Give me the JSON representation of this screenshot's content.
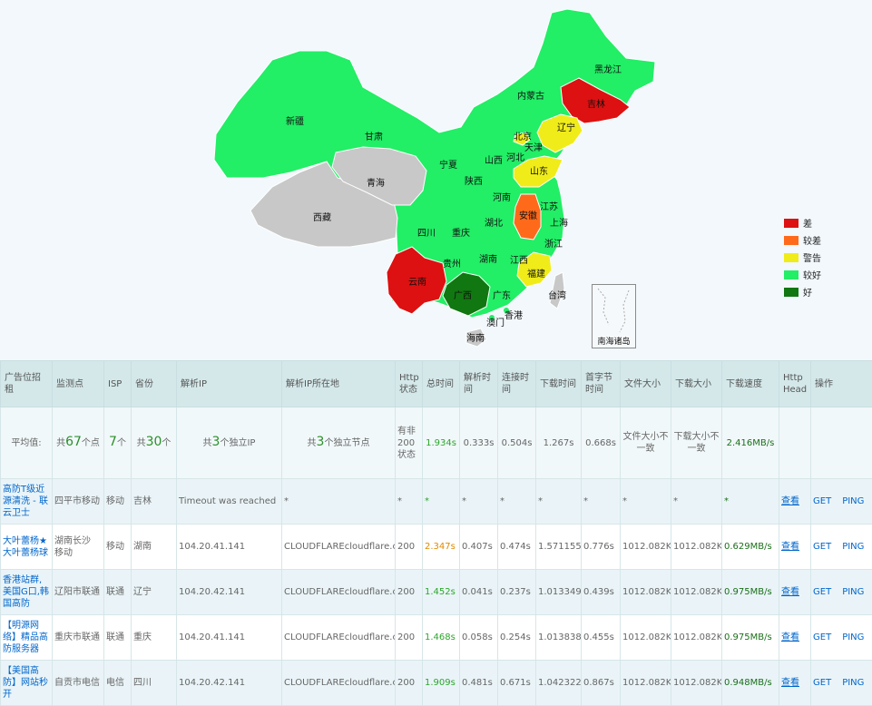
{
  "map": {
    "provinces": [
      {
        "name": "黑龙江",
        "status": "较好"
      },
      {
        "name": "吉林",
        "status": "差"
      },
      {
        "name": "内蒙古",
        "status": "较好"
      },
      {
        "name": "辽宁",
        "status": "警告"
      },
      {
        "name": "新疆",
        "status": "较好"
      },
      {
        "name": "甘肃",
        "status": "较好"
      },
      {
        "name": "北京",
        "status": "警告"
      },
      {
        "name": "天津",
        "status": "较好"
      },
      {
        "name": "宁夏",
        "status": "较好"
      },
      {
        "name": "山西",
        "status": "较好"
      },
      {
        "name": "河北",
        "status": "较好"
      },
      {
        "name": "山东",
        "status": "警告"
      },
      {
        "name": "青海",
        "status": "无数据"
      },
      {
        "name": "陕西",
        "status": "较好"
      },
      {
        "name": "河南",
        "status": "较好"
      },
      {
        "name": "江苏",
        "status": "较好"
      },
      {
        "name": "西藏",
        "status": "无数据"
      },
      {
        "name": "安徽",
        "status": "较差"
      },
      {
        "name": "上海",
        "status": "较好"
      },
      {
        "name": "四川",
        "status": "较好"
      },
      {
        "name": "重庆",
        "status": "较好"
      },
      {
        "name": "湖北",
        "status": "较好"
      },
      {
        "name": "浙江",
        "status": "较好"
      },
      {
        "name": "贵州",
        "status": "较好"
      },
      {
        "name": "湖南",
        "status": "较好"
      },
      {
        "name": "江西",
        "status": "较好"
      },
      {
        "name": "福建",
        "status": "警告"
      },
      {
        "name": "云南",
        "status": "差"
      },
      {
        "name": "广西",
        "status": "好"
      },
      {
        "name": "广东",
        "status": "较好"
      },
      {
        "name": "台湾",
        "status": "无数据"
      },
      {
        "name": "香港",
        "status": "较好"
      },
      {
        "name": "澳门",
        "status": "较好"
      },
      {
        "name": "海南",
        "status": "无数据"
      }
    ],
    "inset_label": "南海诸岛",
    "legend": [
      {
        "label": "差",
        "color": "#dd1111"
      },
      {
        "label": "较差",
        "color": "#ff6a1a"
      },
      {
        "label": "警告",
        "color": "#f0ec1a"
      },
      {
        "label": "较好",
        "color": "#22ee66"
      },
      {
        "label": "好",
        "color": "#117711"
      }
    ],
    "colors": {
      "no_data": "#c8c8c8",
      "border": "#ffffff"
    }
  },
  "table": {
    "headers": [
      "广告位招租",
      "监测点",
      "ISP",
      "省份",
      "解析IP",
      "解析IP所在地",
      "Http状态",
      "总时间",
      "解析时间",
      "连接时间",
      "下载时间",
      "首字节时间",
      "文件大小",
      "下载大小",
      "下载速度",
      "Http Head",
      "操作"
    ],
    "avg": {
      "label": "平均值:",
      "points_prefix": "共",
      "points_num": "67",
      "points_suffix": "个点",
      "isp_num": "7",
      "isp_suffix": "个",
      "prov_prefix": "共",
      "prov_num": "30",
      "prov_suffix": "个",
      "ip_prefix": "共",
      "ip_num": "3",
      "ip_suffix": "个独立IP",
      "node_prefix": "共",
      "node_num": "3",
      "node_suffix": "个独立节点",
      "http": "有非200状态",
      "total": "1.934s",
      "dns": "0.333s",
      "connect": "0.504s",
      "download": "1.267s",
      "ttfb": "0.668s",
      "filesize": "文件大小不一致",
      "dlsize": "下载大小不一致",
      "speed": "2.416MB/s"
    },
    "rows": [
      {
        "ad": "高防T级近源清洗 - 联云卫士",
        "point": "四平市移动",
        "isp": "移动",
        "prov": "吉林",
        "ip": "Timeout was reached",
        "loc": "*",
        "http": "*",
        "total": "*",
        "dns": "*",
        "connect": "*",
        "download": "*",
        "ttfb": "*",
        "filesize": "*",
        "dlsize": "*",
        "speed": "*",
        "head": "查看",
        "get": "GET",
        "ping": "PING",
        "total_color": "green"
      },
      {
        "ad": "大叶蕾杨★大叶蕾杨球",
        "point": "湖南长沙 移动",
        "isp": "移动",
        "prov": "湖南",
        "ip": "104.20.41.141",
        "loc": "CLOUDFLAREcloudflare.com",
        "http": "200",
        "total": "2.347s",
        "dns": "0.407s",
        "connect": "0.474s",
        "download": "1.571155s",
        "ttfb": "0.776s",
        "filesize": "1012.082KB",
        "dlsize": "1012.082KB",
        "speed": "0.629MB/s",
        "head": "查看",
        "get": "GET",
        "ping": "PING",
        "total_color": "orange"
      },
      {
        "ad": "香港站群,美国G口,韩国高防",
        "point": "辽阳市联通",
        "isp": "联通",
        "prov": "辽宁",
        "ip": "104.20.42.141",
        "loc": "CLOUDFLAREcloudflare.com",
        "http": "200",
        "total": "1.452s",
        "dns": "0.041s",
        "connect": "0.237s",
        "download": "1.013349s",
        "ttfb": "0.439s",
        "filesize": "1012.082KB",
        "dlsize": "1012.082KB",
        "speed": "0.975MB/s",
        "head": "查看",
        "get": "GET",
        "ping": "PING",
        "total_color": "green"
      },
      {
        "ad": "【明源网络】精品高防服务器",
        "point": "重庆市联通",
        "isp": "联通",
        "prov": "重庆",
        "ip": "104.20.41.141",
        "loc": "CLOUDFLAREcloudflare.com",
        "http": "200",
        "total": "1.468s",
        "dns": "0.058s",
        "connect": "0.254s",
        "download": "1.013838s",
        "ttfb": "0.455s",
        "filesize": "1012.082KB",
        "dlsize": "1012.082KB",
        "speed": "0.975MB/s",
        "head": "查看",
        "get": "GET",
        "ping": "PING",
        "total_color": "green"
      },
      {
        "ad": "【美国高防】网站秒开",
        "point": "自贡市电信",
        "isp": "电信",
        "prov": "四川",
        "ip": "104.20.42.141",
        "loc": "CLOUDFLAREcloudflare.com",
        "http": "200",
        "total": "1.909s",
        "dns": "0.481s",
        "connect": "0.671s",
        "download": "1.042322s",
        "ttfb": "0.867s",
        "filesize": "1012.082KB",
        "dlsize": "1012.082KB",
        "speed": "0.948MB/s",
        "head": "查看",
        "get": "GET",
        "ping": "PING",
        "total_color": "green"
      }
    ]
  }
}
